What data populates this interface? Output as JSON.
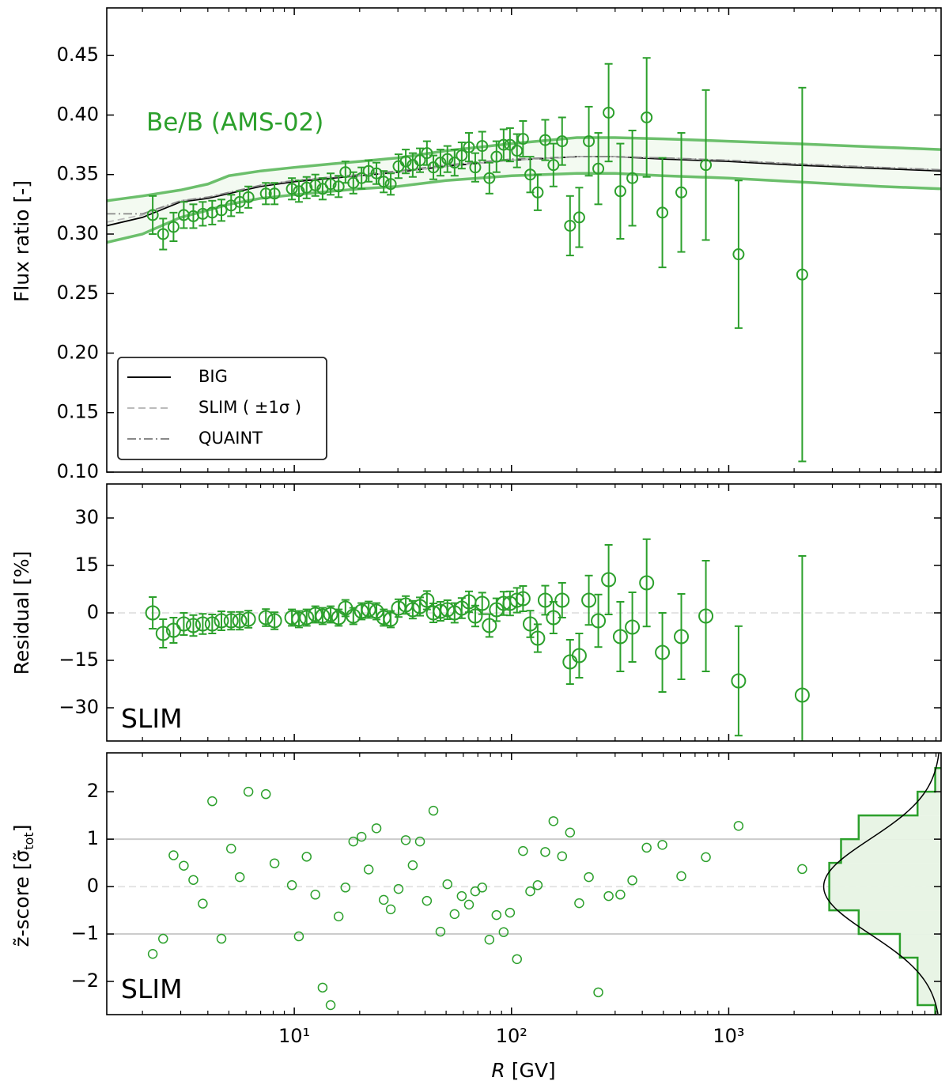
{
  "x_axis": {
    "log": true,
    "xlim": [
      1.37,
      9500
    ],
    "xticks": [
      {
        "value": 10,
        "label": "10¹"
      },
      {
        "value": 100,
        "label": "10²"
      },
      {
        "value": 1000,
        "label": "10³"
      }
    ],
    "xminor_ticks": [
      2,
      3,
      4,
      5,
      6,
      7,
      8,
      9,
      20,
      30,
      40,
      50,
      60,
      70,
      80,
      90,
      200,
      300,
      400,
      500,
      600,
      700,
      800,
      900,
      2000,
      3000,
      4000,
      5000,
      6000,
      7000,
      8000,
      9000
    ],
    "xlabel_var": "R",
    "xlabel_unit": "[GV]"
  },
  "chart_data": [
    {
      "type": "errorbar",
      "ylabel": "Flux ratio [-]",
      "annotation": "Be/B (AMS-02)",
      "color": "#2ca02c",
      "ylim": [
        0.1,
        0.49
      ],
      "yticks": [
        {
          "value": 0.1,
          "label": "0.10"
        },
        0.15,
        {
          "value": 0.2,
          "label": "0.20"
        },
        0.25,
        {
          "value": 0.3,
          "label": "0.30"
        },
        0.35,
        {
          "value": 0.4,
          "label": "0.40"
        },
        0.45
      ],
      "x": [
        2.23,
        2.49,
        2.78,
        3.1,
        3.43,
        3.79,
        4.19,
        4.62,
        5.12,
        5.61,
        6.15,
        7.4,
        8.11,
        9.75,
        10.5,
        11.4,
        12.5,
        13.5,
        14.7,
        16.0,
        17.2,
        18.7,
        20.4,
        22.0,
        23.9,
        25.8,
        27.8,
        30.2,
        32.6,
        35.1,
        37.9,
        40.8,
        43.7,
        47.1,
        50.7,
        54.7,
        59.0,
        63.7,
        68.1,
        73.3,
        79.1,
        85.3,
        92.0,
        98.4,
        106,
        113,
        122,
        132,
        143,
        156,
        171,
        186,
        205,
        227,
        251,
        280,
        317,
        360,
        419,
        495,
        605,
        785,
        1110,
        2180
      ],
      "values": [
        0.316,
        0.3,
        0.306,
        0.316,
        0.315,
        0.317,
        0.318,
        0.32,
        0.324,
        0.327,
        0.331,
        0.334,
        0.334,
        0.338,
        0.336,
        0.339,
        0.341,
        0.338,
        0.342,
        0.34,
        0.352,
        0.343,
        0.347,
        0.353,
        0.351,
        0.344,
        0.342,
        0.357,
        0.361,
        0.358,
        0.362,
        0.368,
        0.356,
        0.36,
        0.363,
        0.36,
        0.366,
        0.373,
        0.356,
        0.374,
        0.347,
        0.365,
        0.375,
        0.375,
        0.37,
        0.38,
        0.35,
        0.335,
        0.379,
        0.358,
        0.378,
        0.307,
        0.314,
        0.378,
        0.355,
        0.402,
        0.336,
        0.347,
        0.398,
        0.318,
        0.335,
        0.358,
        0.283,
        0.266
      ],
      "errors": [
        0.016,
        0.013,
        0.012,
        0.011,
        0.01,
        0.01,
        0.01,
        0.009,
        0.009,
        0.009,
        0.009,
        0.009,
        0.009,
        0.009,
        0.009,
        0.009,
        0.009,
        0.009,
        0.009,
        0.009,
        0.009,
        0.009,
        0.009,
        0.009,
        0.009,
        0.009,
        0.009,
        0.01,
        0.01,
        0.01,
        0.01,
        0.01,
        0.01,
        0.011,
        0.011,
        0.011,
        0.011,
        0.012,
        0.012,
        0.012,
        0.013,
        0.013,
        0.013,
        0.014,
        0.014,
        0.015,
        0.015,
        0.015,
        0.017,
        0.018,
        0.02,
        0.025,
        0.025,
        0.029,
        0.03,
        0.041,
        0.04,
        0.04,
        0.05,
        0.046,
        0.05,
        0.063,
        0.062,
        0.157
      ],
      "band": {
        "color": "#5cb85c",
        "fill": "#f3faf1",
        "x": [
          1.37,
          2,
          3,
          4,
          5,
          7,
          10,
          15,
          20,
          30,
          50,
          100,
          200,
          300,
          500,
          1000,
          2000,
          5000,
          9500
        ],
        "upper": [
          0.328,
          0.332,
          0.337,
          0.342,
          0.349,
          0.353,
          0.356,
          0.359,
          0.361,
          0.364,
          0.37,
          0.376,
          0.381,
          0.381,
          0.38,
          0.378,
          0.376,
          0.373,
          0.371
        ],
        "lower": [
          0.293,
          0.3,
          0.314,
          0.32,
          0.325,
          0.33,
          0.333,
          0.336,
          0.338,
          0.34,
          0.345,
          0.349,
          0.351,
          0.351,
          0.349,
          0.347,
          0.344,
          0.34,
          0.338
        ]
      },
      "lines": [
        {
          "name": "BIG",
          "color": "#000000",
          "style": "solid",
          "x": [
            1.37,
            2,
            3,
            4,
            5,
            7,
            10,
            15,
            20,
            30,
            50,
            100,
            200,
            300,
            500,
            1000,
            2000,
            5000,
            9500
          ],
          "values": [
            0.307,
            0.314,
            0.327,
            0.33,
            0.334,
            0.34,
            0.344,
            0.347,
            0.349,
            0.352,
            0.357,
            0.362,
            0.365,
            0.365,
            0.363,
            0.361,
            0.358,
            0.355,
            0.353
          ]
        },
        {
          "name": "SLIM ( ±1σ )",
          "color": "#bbbbbb",
          "style": "dashed",
          "x": [
            1.37,
            2,
            3,
            4,
            5,
            7,
            10,
            15,
            20,
            30,
            50,
            100,
            200,
            300,
            500,
            1000,
            2000,
            5000,
            9500
          ],
          "values": [
            0.31,
            0.316,
            0.328,
            0.331,
            0.335,
            0.341,
            0.345,
            0.348,
            0.349,
            0.352,
            0.357,
            0.362,
            0.365,
            0.365,
            0.364,
            0.362,
            0.359,
            0.356,
            0.354
          ]
        },
        {
          "name": "QUAINT",
          "color": "#888888",
          "style": "dashdot",
          "x": [
            1.37,
            2,
            3,
            4,
            5,
            7,
            10,
            15,
            20,
            30,
            50,
            100,
            200,
            300,
            500,
            1000,
            2000,
            5000,
            9500
          ],
          "values": [
            0.317,
            0.317,
            0.328,
            0.331,
            0.335,
            0.341,
            0.345,
            0.348,
            0.35,
            0.353,
            0.358,
            0.363,
            0.365,
            0.365,
            0.364,
            0.362,
            0.359,
            0.356,
            0.354
          ]
        }
      ],
      "legend": "lower left"
    },
    {
      "type": "errorbar",
      "ylabel": "Residual [%]",
      "annotation": "SLIM",
      "color": "#2ca02c",
      "ylim": [
        -40.5,
        40.75
      ],
      "yticks": [
        {
          "value": -30,
          "label": "−30"
        },
        {
          "value": -15,
          "label": "−15"
        },
        0,
        15,
        30
      ],
      "hlines": [
        {
          "value": 0,
          "style": "dashed"
        }
      ],
      "x": [
        2.23,
        2.49,
        2.78,
        3.1,
        3.43,
        3.79,
        4.19,
        4.62,
        5.12,
        5.61,
        6.15,
        7.4,
        8.11,
        9.75,
        10.5,
        11.4,
        12.5,
        13.5,
        14.7,
        16.0,
        17.2,
        18.7,
        20.4,
        22.0,
        23.9,
        25.8,
        27.8,
        30.2,
        32.6,
        35.1,
        37.9,
        40.8,
        43.7,
        47.1,
        50.7,
        54.7,
        59.0,
        63.7,
        68.1,
        73.3,
        79.1,
        85.3,
        92.0,
        98.4,
        106,
        113,
        122,
        132,
        143,
        156,
        171,
        186,
        205,
        227,
        251,
        280,
        317,
        360,
        419,
        495,
        605,
        785,
        1110,
        2180
      ],
      "values": [
        0,
        -6.5,
        -5.5,
        -3.5,
        -4,
        -3.5,
        -3.5,
        -2.5,
        -2.5,
        -2.5,
        -2,
        -1.5,
        -2.5,
        -1.5,
        -2,
        -1.5,
        -0.5,
        -1,
        -0.5,
        -1.5,
        1.5,
        -1,
        0.5,
        1,
        0.5,
        -1.5,
        -2,
        1.5,
        2.5,
        1,
        2,
        4,
        0,
        0.5,
        1,
        0,
        1.5,
        3.5,
        -1,
        3,
        -4,
        1,
        3,
        3,
        4,
        4.5,
        -3.5,
        -8,
        4,
        -1.5,
        4,
        -15.5,
        -13.5,
        4,
        -2.5,
        10.5,
        -7.5,
        -4.5,
        9.5,
        -12.5,
        -7.5,
        -1,
        -21.5,
        -26
      ],
      "errors": [
        5,
        4.5,
        4,
        3.5,
        3.3,
        3.2,
        3,
        3,
        2.8,
        2.8,
        2.7,
        2.7,
        2.7,
        2.6,
        2.6,
        2.6,
        2.6,
        2.6,
        2.6,
        2.6,
        2.6,
        2.6,
        2.6,
        2.6,
        2.6,
        2.6,
        2.6,
        2.8,
        2.8,
        2.8,
        2.9,
        2.9,
        3,
        3,
        3,
        3.1,
        3.2,
        3.3,
        3.3,
        3.4,
        3.6,
        3.6,
        3.7,
        3.8,
        3.9,
        4,
        4.2,
        4.4,
        4.6,
        5,
        5.5,
        7,
        7,
        7.8,
        8.3,
        11,
        11,
        11,
        13.8,
        12.5,
        13.5,
        17.5,
        17.3,
        44
      ]
    },
    {
      "type": "scatter",
      "ylabel": [
        "z̃-score  [σ̃",
        "tot",
        "]"
      ],
      "annotation": "SLIM",
      "color": "#2ca02c",
      "xtick_labels": true,
      "ylim": [
        -2.7,
        2.82
      ],
      "yticks": [
        {
          "value": -2,
          "label": "−2"
        },
        {
          "value": -1,
          "label": "−1"
        },
        0,
        1,
        2
      ],
      "hlines": [
        {
          "value": -1,
          "style": "solid"
        },
        {
          "value": 0,
          "style": "dashed"
        },
        {
          "value": 1,
          "style": "solid"
        }
      ],
      "x": [
        2.23,
        2.49,
        2.78,
        3.1,
        3.43,
        3.79,
        4.19,
        4.62,
        5.12,
        5.61,
        6.15,
        7.4,
        8.11,
        9.75,
        10.5,
        11.4,
        12.5,
        13.5,
        14.7,
        16.0,
        17.2,
        18.7,
        20.4,
        22.0,
        23.9,
        25.8,
        27.8,
        30.2,
        32.6,
        35.1,
        37.9,
        40.8,
        43.7,
        47.1,
        50.7,
        54.7,
        59.0,
        63.7,
        68.1,
        73.3,
        79.1,
        85.3,
        92.0,
        98.4,
        106,
        113,
        122,
        132,
        143,
        156,
        171,
        186,
        205,
        227,
        251,
        280,
        317,
        360,
        419,
        495,
        605,
        785,
        1110,
        2180
      ],
      "values": [
        -1.42,
        -1.1,
        0.66,
        0.44,
        0.14,
        -0.36,
        1.8,
        -1.1,
        0.8,
        0.2,
        2.0,
        1.95,
        0.49,
        0.03,
        -1.05,
        0.63,
        -0.17,
        -2.13,
        -2.5,
        -0.63,
        -0.02,
        0.95,
        1.05,
        0.36,
        1.23,
        -0.28,
        -0.48,
        -0.05,
        0.98,
        0.45,
        0.95,
        -0.3,
        1.6,
        -0.95,
        0.05,
        -0.58,
        -0.2,
        -0.38,
        -0.1,
        -0.02,
        -1.12,
        -0.6,
        -0.96,
        -0.55,
        -1.53,
        0.75,
        -0.1,
        0.03,
        0.73,
        1.38,
        0.64,
        1.14,
        -0.35,
        0.2,
        -2.23,
        -0.2,
        -0.17,
        0.13,
        0.82,
        0.88,
        0.22,
        0.62,
        1.28,
        0.37
      ],
      "histogram": {
        "bins": [
          -3,
          -2.5,
          -2,
          -1.5,
          -1,
          -0.5,
          0,
          0.5,
          1,
          1.5,
          2,
          2.5
        ],
        "density": [
          0.02,
          0.08,
          0.08,
          0.14,
          0.28,
          0.38,
          0.38,
          0.34,
          0.28,
          0.08,
          0.02
        ],
        "density_lim": [
          0,
          0.43
        ],
        "fill": "#e8f4e5"
      },
      "gaussian": {
        "mean": 0,
        "sigma": 1,
        "color": "#000000"
      }
    }
  ]
}
